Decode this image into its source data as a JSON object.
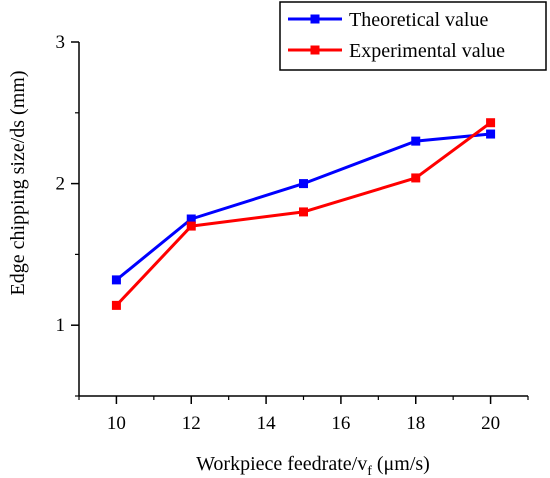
{
  "chart_data": {
    "type": "line",
    "xlabel": "Workpiece feedrate/v",
    "xlabel_sub": "f",
    "xlabel_unit": " (μm/s)",
    "ylabel": "Edge chipping size/ds (mm)",
    "x": [
      10,
      12,
      15,
      18,
      20
    ],
    "xlim": [
      9,
      21
    ],
    "ylim": [
      0.5,
      3
    ],
    "xticks": [
      10,
      12,
      14,
      16,
      18,
      20
    ],
    "yticks": [
      1,
      2,
      3
    ],
    "legend_position": "top-right",
    "series": [
      {
        "name": "Theoretical value",
        "color": "#0000ff",
        "marker": "square",
        "values": [
          1.32,
          1.75,
          2.0,
          2.3,
          2.35
        ]
      },
      {
        "name": "Experimental value",
        "color": "#ff0000",
        "marker": "square",
        "values": [
          1.14,
          1.7,
          1.8,
          2.04,
          2.43
        ]
      }
    ]
  }
}
